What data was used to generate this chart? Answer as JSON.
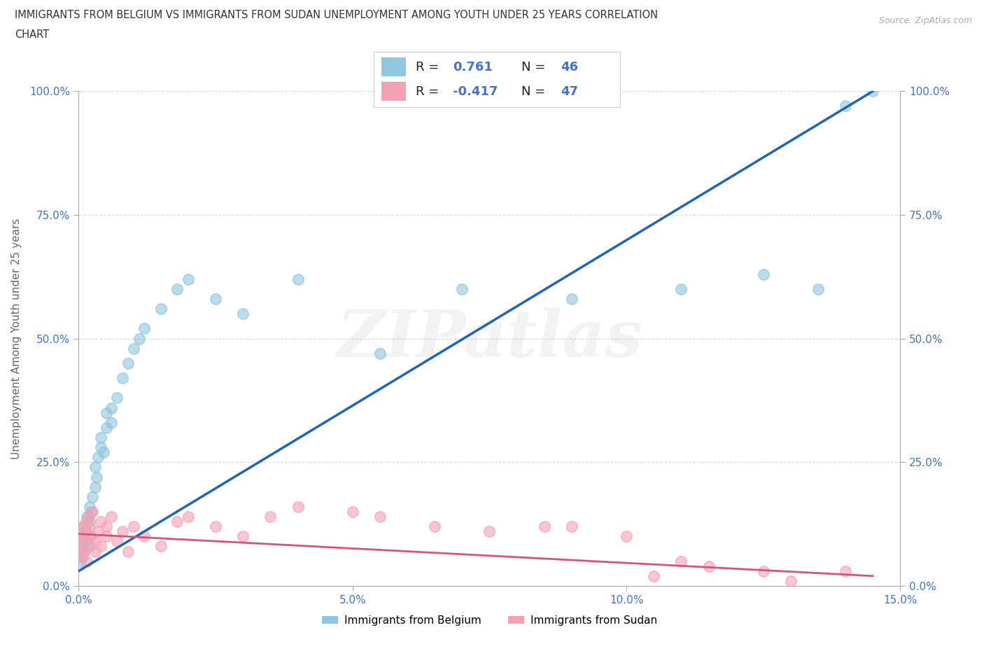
{
  "title_line1": "IMMIGRANTS FROM BELGIUM VS IMMIGRANTS FROM SUDAN UNEMPLOYMENT AMONG YOUTH UNDER 25 YEARS CORRELATION",
  "title_line2": "CHART",
  "source": "Source: ZipAtlas.com",
  "ylabel": "Unemployment Among Youth under 25 years",
  "watermark": "ZIPatlas",
  "legend_label1": "Immigrants from Belgium",
  "legend_label2": "Immigrants from Sudan",
  "r1_val": "0.761",
  "n1_val": "46",
  "r2_val": "-0.417",
  "n2_val": "47",
  "xlim": [
    0.0,
    0.15
  ],
  "ylim": [
    0.0,
    1.0
  ],
  "xticks": [
    0.0,
    0.05,
    0.1,
    0.15
  ],
  "yticks": [
    0.0,
    0.25,
    0.5,
    0.75,
    1.0
  ],
  "xticklabels": [
    "0.0%",
    "5.0%",
    "10.0%",
    "15.0%"
  ],
  "yticklabels": [
    "0.0%",
    "25.0%",
    "50.0%",
    "75.0%",
    "100.0%"
  ],
  "color_belgium": "#92c5de",
  "color_sudan": "#f4a0b5",
  "color_belgium_line": "#2166ac",
  "color_sudan_line": "#d6547a",
  "background_color": "#ffffff",
  "grid_color": "#cccccc",
  "tick_color": "#4472c4",
  "belgium_x": [
    0.0003,
    0.0005,
    0.0007,
    0.0008,
    0.001,
    0.001,
    0.0012,
    0.0013,
    0.0015,
    0.0015,
    0.0018,
    0.002,
    0.002,
    0.0022,
    0.0025,
    0.003,
    0.003,
    0.0032,
    0.0035,
    0.004,
    0.004,
    0.0045,
    0.005,
    0.005,
    0.006,
    0.006,
    0.007,
    0.008,
    0.009,
    0.01,
    0.011,
    0.012,
    0.015,
    0.018,
    0.02,
    0.025,
    0.03,
    0.04,
    0.055,
    0.07,
    0.09,
    0.11,
    0.125,
    0.135,
    0.14,
    0.145
  ],
  "belgium_y": [
    0.05,
    0.08,
    0.06,
    0.1,
    0.07,
    0.12,
    0.09,
    0.11,
    0.08,
    0.14,
    0.1,
    0.13,
    0.16,
    0.15,
    0.18,
    0.2,
    0.24,
    0.22,
    0.26,
    0.28,
    0.3,
    0.27,
    0.32,
    0.35,
    0.33,
    0.36,
    0.38,
    0.42,
    0.45,
    0.48,
    0.5,
    0.52,
    0.56,
    0.6,
    0.62,
    0.58,
    0.55,
    0.62,
    0.47,
    0.6,
    0.58,
    0.6,
    0.63,
    0.6,
    0.97,
    1.0
  ],
  "sudan_x": [
    0.0003,
    0.0005,
    0.0007,
    0.0008,
    0.001,
    0.001,
    0.0012,
    0.0013,
    0.0015,
    0.0018,
    0.002,
    0.002,
    0.0022,
    0.0025,
    0.003,
    0.003,
    0.0035,
    0.004,
    0.004,
    0.005,
    0.005,
    0.006,
    0.007,
    0.008,
    0.009,
    0.01,
    0.012,
    0.015,
    0.018,
    0.02,
    0.025,
    0.03,
    0.035,
    0.04,
    0.05,
    0.055,
    0.065,
    0.075,
    0.085,
    0.09,
    0.1,
    0.105,
    0.11,
    0.115,
    0.125,
    0.13,
    0.14
  ],
  "sudan_y": [
    0.08,
    0.06,
    0.1,
    0.12,
    0.07,
    0.09,
    0.11,
    0.13,
    0.05,
    0.14,
    0.08,
    0.12,
    0.1,
    0.15,
    0.07,
    0.09,
    0.11,
    0.13,
    0.08,
    0.1,
    0.12,
    0.14,
    0.09,
    0.11,
    0.07,
    0.12,
    0.1,
    0.08,
    0.13,
    0.14,
    0.12,
    0.1,
    0.14,
    0.16,
    0.15,
    0.14,
    0.12,
    0.11,
    0.12,
    0.12,
    0.1,
    0.02,
    0.05,
    0.04,
    0.03,
    0.01,
    0.03
  ],
  "belgium_trend_x": [
    0.0,
    0.145
  ],
  "belgium_trend_y": [
    0.03,
    1.0
  ],
  "sudan_trend_x": [
    0.0,
    0.145
  ],
  "sudan_trend_y": [
    0.105,
    0.02
  ]
}
